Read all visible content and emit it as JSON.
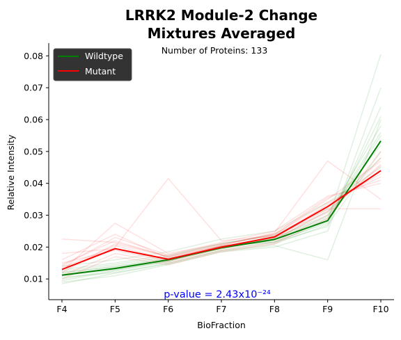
{
  "chart_data": {
    "type": "line",
    "title": "LRRK2 Module-2 Change",
    "subtitle": "Mixtures Averaged",
    "annotation": "Number of Proteins: 133",
    "pvalue_label": "p-value = 2.43x10⁻²⁴",
    "xlabel": "BioFraction",
    "ylabel": "Relative Intensity",
    "categories": [
      "F4",
      "F5",
      "F6",
      "F7",
      "F8",
      "F9",
      "F10"
    ],
    "yticks": [
      0.01,
      0.02,
      0.03,
      0.04,
      0.05,
      0.06,
      0.07,
      0.08
    ],
    "ytick_labels": [
      "0.01",
      "0.02",
      "0.03",
      "0.04",
      "0.05",
      "0.06",
      "0.07",
      "0.08"
    ],
    "ylim": [
      0.0035,
      0.084
    ],
    "legend": {
      "placement": "top-left"
    },
    "series": [
      {
        "name": "Wildtype",
        "color": "#008000",
        "values": [
          0.0112,
          0.0133,
          0.016,
          0.0198,
          0.0224,
          0.0283,
          0.0533
        ]
      },
      {
        "name": "Mutant",
        "color": "#ff0000",
        "values": [
          0.013,
          0.0195,
          0.0162,
          0.02,
          0.0232,
          0.0327,
          0.044
        ]
      }
    ],
    "background_traces": {
      "Wildtype": {
        "color": "#008000",
        "lines": [
          [
            0.0095,
            0.0125,
            0.0155,
            0.0205,
            0.0215,
            0.0265,
            0.064
          ],
          [
            0.012,
            0.014,
            0.0165,
            0.0195,
            0.023,
            0.03,
            0.058
          ],
          [
            0.0105,
            0.012,
            0.015,
            0.019,
            0.021,
            0.027,
            0.05
          ],
          [
            0.013,
            0.015,
            0.0175,
            0.021,
            0.024,
            0.032,
            0.048
          ],
          [
            0.009,
            0.011,
            0.0145,
            0.0185,
            0.02,
            0.025,
            0.07
          ],
          [
            0.0115,
            0.0135,
            0.016,
            0.02,
            0.0225,
            0.029,
            0.055
          ],
          [
            0.01,
            0.0128,
            0.0158,
            0.0202,
            0.0218,
            0.0275,
            0.061
          ],
          [
            0.0125,
            0.0145,
            0.017,
            0.0212,
            0.0235,
            0.031,
            0.052
          ],
          [
            0.0085,
            0.0118,
            0.0148,
            0.0188,
            0.0205,
            0.016,
            0.06
          ],
          [
            0.014,
            0.016,
            0.0185,
            0.0225,
            0.025,
            0.034,
            0.045
          ],
          [
            0.011,
            0.013,
            0.0155,
            0.0195,
            0.0215,
            0.028,
            0.0805
          ],
          [
            0.012,
            0.0138,
            0.0162,
            0.0198,
            0.0228,
            0.0295,
            0.056
          ]
        ]
      },
      "Mutant": {
        "color": "#ff0000",
        "lines": [
          [
            0.012,
            0.021,
            0.017,
            0.0205,
            0.024,
            0.034,
            0.042
          ],
          [
            0.015,
            0.019,
            0.0155,
            0.0195,
            0.0225,
            0.031,
            0.046
          ],
          [
            0.011,
            0.018,
            0.015,
            0.019,
            0.0215,
            0.03,
            0.048
          ],
          [
            0.014,
            0.023,
            0.0175,
            0.0215,
            0.025,
            0.036,
            0.04
          ],
          [
            0.013,
            0.02,
            0.0415,
            0.022,
            0.0235,
            0.033,
            0.044
          ],
          [
            0.016,
            0.024,
            0.0165,
            0.0205,
            0.0245,
            0.047,
            0.035
          ],
          [
            0.01,
            0.017,
            0.0145,
            0.0185,
            0.021,
            0.029,
            0.05
          ],
          [
            0.0135,
            0.0205,
            0.016,
            0.02,
            0.023,
            0.032,
            0.032
          ],
          [
            0.0125,
            0.0275,
            0.018,
            0.021,
            0.0238,
            0.035,
            0.047
          ],
          [
            0.0145,
            0.022,
            0.0168,
            0.0202,
            0.0228,
            0.0335,
            0.043
          ],
          [
            0.018,
            0.0195,
            0.0158,
            0.0198,
            0.0222,
            0.0315,
            0.0455
          ],
          [
            0.0225,
            0.0215,
            0.0172,
            0.0208,
            0.0242,
            0.0355,
            0.041
          ]
        ]
      }
    }
  }
}
